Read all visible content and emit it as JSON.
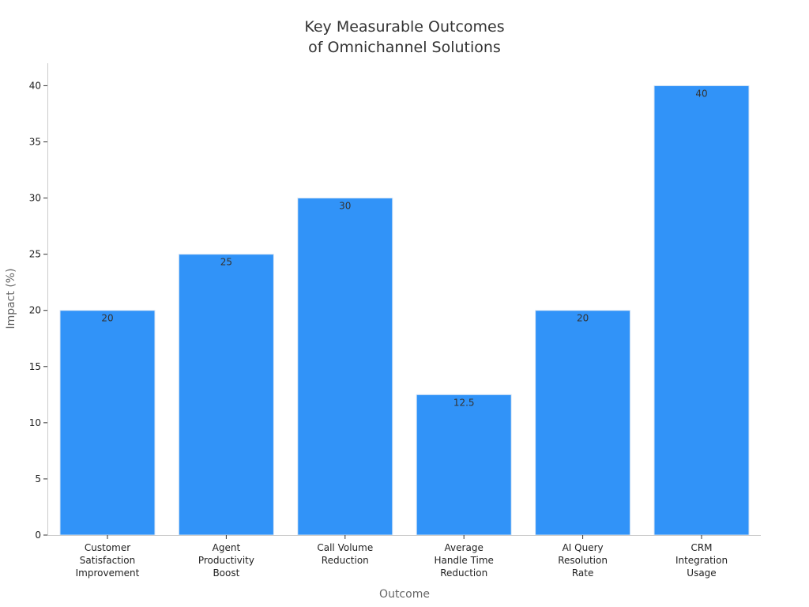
{
  "chart_data": {
    "type": "bar",
    "title": [
      "Key Measurable Outcomes",
      "of Omnichannel Solutions"
    ],
    "xlabel": "Outcome",
    "ylabel": "Impact (%)",
    "categories": [
      [
        "Customer",
        "Satisfaction",
        "Improvement"
      ],
      [
        "Agent",
        "Productivity",
        "Boost"
      ],
      [
        "Call Volume",
        "Reduction"
      ],
      [
        "Average",
        "Handle Time",
        "Reduction"
      ],
      [
        "AI Query",
        "Resolution",
        "Rate"
      ],
      [
        "CRM",
        "Integration",
        "Usage"
      ]
    ],
    "values": [
      20,
      25,
      30,
      12.5,
      20,
      40
    ],
    "data_labels": [
      "20",
      "25",
      "30",
      "12.5",
      "20",
      "40"
    ],
    "ylim": [
      0,
      42
    ],
    "yticks": [
      0,
      5,
      10,
      15,
      20,
      25,
      30,
      35,
      40
    ],
    "grid": false,
    "bar_color": "#3193f8",
    "bar_edge_color": "#d8e6f5"
  }
}
